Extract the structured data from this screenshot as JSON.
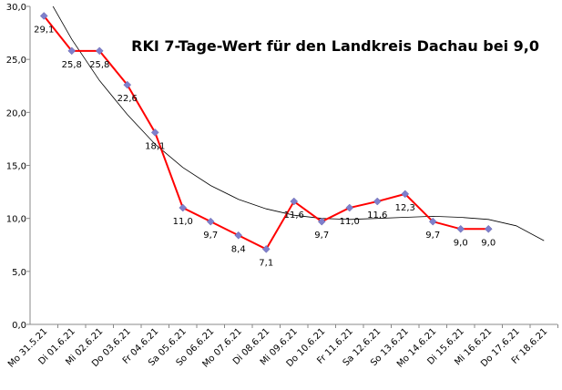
{
  "chart_data": {
    "type": "line",
    "title": "RKI  7-Tage-Wert  für den Landkreis Dachau bei 9,0",
    "categories": [
      "Mo 31.5.21",
      "Di 01.6.21",
      "Mi 02.6.21",
      "Do 03.6.21",
      "Fr 04.6.21",
      "Sa 05.6.21",
      "So 06.6.21",
      "Mo 07.6.21",
      "Di 08.6.21",
      "Mi 09.6.21",
      "Do 10.6.21",
      "Fr 11.6.21",
      "Sa 12.6.21",
      "So 13.6.21",
      "Mo 14.6.21",
      "Di 15.6.21",
      "Mi 16.6.21",
      "Do 17.6.21",
      "Fr 18.6.21"
    ],
    "values": [
      29.1,
      25.8,
      25.8,
      22.6,
      18.1,
      11.0,
      9.7,
      8.4,
      7.1,
      11.6,
      9.7,
      11.0,
      11.6,
      12.3,
      9.7,
      9.0,
      9.0,
      null,
      null
    ],
    "value_labels": [
      "29,1",
      "25,8",
      "25,8",
      "22,6",
      "18,1",
      "11,0",
      "9,7",
      "8,4",
      "7,1",
      "11,6",
      "9,7",
      "11,0",
      "11,6",
      "12,3",
      "9,7",
      "9,0",
      "9,0",
      null,
      null
    ],
    "color": "#ff0000",
    "marker_color": "#7f7fcc",
    "trendline": {
      "color": "#000000",
      "values": [
        31.5,
        26.9,
        23.0,
        19.8,
        17.0,
        14.8,
        13.1,
        11.8,
        10.9,
        10.3,
        10.0,
        9.9,
        10.0,
        10.1,
        10.2,
        10.1,
        9.9,
        9.3,
        7.9
      ]
    },
    "ylim": [
      0,
      30
    ],
    "yticks": [
      {
        "value": 0,
        "label": "0,0"
      },
      {
        "value": 5,
        "label": "5,0"
      },
      {
        "value": 10,
        "label": "10,0"
      },
      {
        "value": 15,
        "label": "15,0"
      },
      {
        "value": 20,
        "label": "20,0"
      },
      {
        "value": 25,
        "label": "25,0"
      },
      {
        "value": 30,
        "label": "30,0"
      }
    ]
  }
}
